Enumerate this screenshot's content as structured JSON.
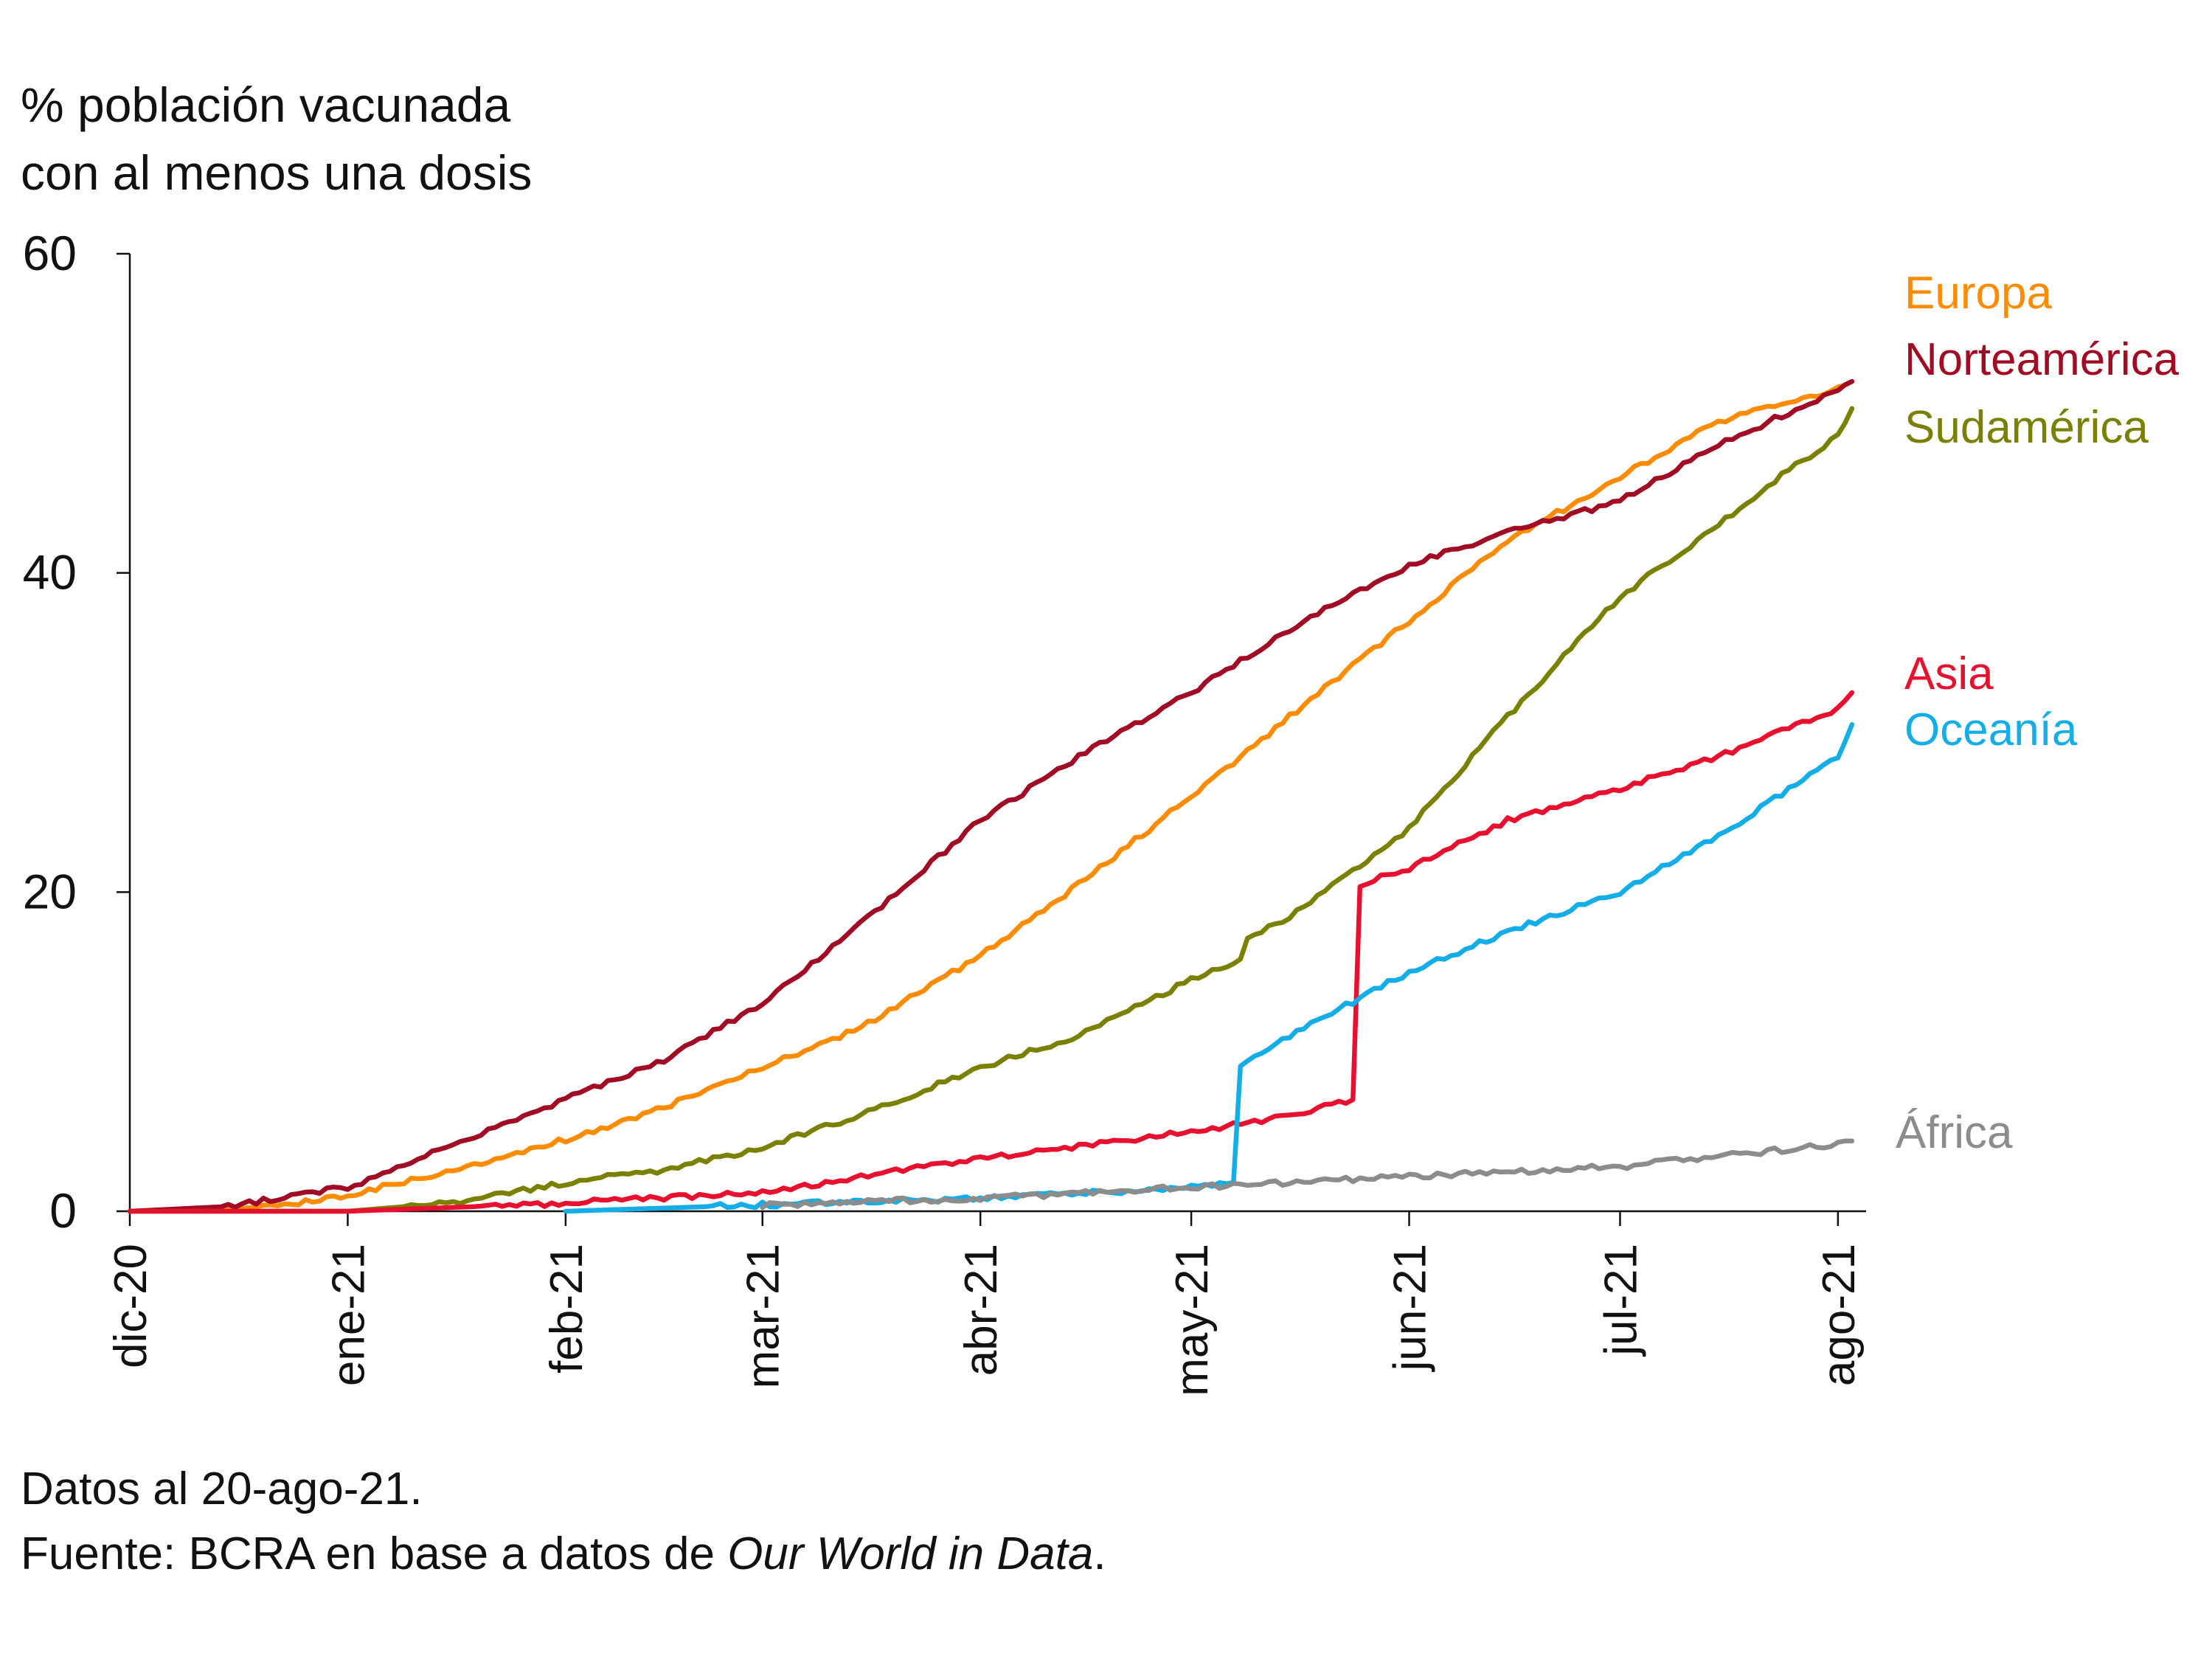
{
  "ylabel_lines": [
    "% población vacunada",
    "con al menos una dosis"
  ],
  "footer": {
    "line1": "Datos al 20-ago-21.",
    "line2_prefix": "Fuente: BCRA en base a datos de ",
    "line2_italic": "Our World in Data",
    "line2_suffix": "."
  },
  "chart_data": {
    "type": "line",
    "title": "",
    "xlabel": "",
    "ylabel": "% población vacunada con al menos una dosis",
    "ylim": [
      0,
      60
    ],
    "yticks": [
      0,
      20,
      40,
      60
    ],
    "xlim": [
      "2020-12-01",
      "2021-08-05"
    ],
    "xticks": [
      {
        "date": "2020-12-01",
        "label": "dic-20"
      },
      {
        "date": "2021-01-01",
        "label": "ene-21"
      },
      {
        "date": "2021-02-01",
        "label": "feb-21"
      },
      {
        "date": "2021-03-01",
        "label": "mar-21"
      },
      {
        "date": "2021-04-01",
        "label": "abr-21"
      },
      {
        "date": "2021-05-01",
        "label": "may-21"
      },
      {
        "date": "2021-06-01",
        "label": "jun-21"
      },
      {
        "date": "2021-07-01",
        "label": "jul-21"
      },
      {
        "date": "2021-08-01",
        "label": "ago-21"
      }
    ],
    "grid": false,
    "legend": "right, inline labels",
    "series": [
      {
        "name": "Europa",
        "color": "#ff8c00",
        "points": [
          [
            "2020-12-01",
            0
          ],
          [
            "2020-12-15",
            0.1
          ],
          [
            "2020-12-25",
            0.5
          ],
          [
            "2021-01-01",
            1
          ],
          [
            "2021-01-15",
            2.5
          ],
          [
            "2021-02-01",
            4.5
          ],
          [
            "2021-02-15",
            6.5
          ],
          [
            "2021-03-01",
            9
          ],
          [
            "2021-03-15",
            11.5
          ],
          [
            "2021-04-01",
            16
          ],
          [
            "2021-04-15",
            20.5
          ],
          [
            "2021-05-01",
            26
          ],
          [
            "2021-05-15",
            31
          ],
          [
            "2021-06-01",
            37
          ],
          [
            "2021-06-15",
            42
          ],
          [
            "2021-07-01",
            46
          ],
          [
            "2021-07-15",
            49.5
          ],
          [
            "2021-08-01",
            51.5
          ],
          [
            "2021-08-03",
            52
          ]
        ]
      },
      {
        "name": "Norteamérica",
        "color": "#a10b24",
        "points": [
          [
            "2020-12-01",
            0
          ],
          [
            "2020-12-15",
            0.3
          ],
          [
            "2021-01-01",
            1.5
          ],
          [
            "2021-01-15",
            4
          ],
          [
            "2021-02-01",
            7
          ],
          [
            "2021-02-15",
            9.5
          ],
          [
            "2021-03-01",
            13
          ],
          [
            "2021-03-15",
            18
          ],
          [
            "2021-04-01",
            24.5
          ],
          [
            "2021-04-15",
            28.5
          ],
          [
            "2021-05-01",
            32.5
          ],
          [
            "2021-05-15",
            36.5
          ],
          [
            "2021-06-01",
            40.5
          ],
          [
            "2021-06-15",
            42.5
          ],
          [
            "2021-07-01",
            44.5
          ],
          [
            "2021-07-15",
            48
          ],
          [
            "2021-08-01",
            51.5
          ],
          [
            "2021-08-03",
            52
          ]
        ]
      },
      {
        "name": "Sudamérica",
        "color": "#7a8000",
        "points": [
          [
            "2020-12-01",
            0
          ],
          [
            "2021-01-01",
            0
          ],
          [
            "2021-01-15",
            0.5
          ],
          [
            "2021-02-01",
            1.8
          ],
          [
            "2021-02-15",
            2.6
          ],
          [
            "2021-03-01",
            4
          ],
          [
            "2021-03-15",
            6
          ],
          [
            "2021-04-01",
            9
          ],
          [
            "2021-04-15",
            11
          ],
          [
            "2021-05-01",
            14.5
          ],
          [
            "2021-05-08",
            15.8
          ],
          [
            "2021-05-09",
            17
          ],
          [
            "2021-05-15",
            18.5
          ],
          [
            "2021-06-01",
            24
          ],
          [
            "2021-06-15",
            31
          ],
          [
            "2021-07-01",
            38.5
          ],
          [
            "2021-07-15",
            43
          ],
          [
            "2021-07-25",
            46.5
          ],
          [
            "2021-08-01",
            48.5
          ],
          [
            "2021-08-03",
            50.3
          ]
        ]
      },
      {
        "name": "Asia",
        "color": "#e8102e",
        "points": [
          [
            "2020-12-01",
            0
          ],
          [
            "2021-01-01",
            0
          ],
          [
            "2021-02-01",
            0.5
          ],
          [
            "2021-03-01",
            1.2
          ],
          [
            "2021-04-01",
            3.3
          ],
          [
            "2021-05-01",
            5
          ],
          [
            "2021-05-15",
            6
          ],
          [
            "2021-05-24",
            7
          ],
          [
            "2021-05-25",
            20.5
          ],
          [
            "2021-06-01",
            21.5
          ],
          [
            "2021-06-15",
            24.5
          ],
          [
            "2021-07-01",
            26.5
          ],
          [
            "2021-07-15",
            28.5
          ],
          [
            "2021-08-01",
            31.5
          ],
          [
            "2021-08-03",
            32.5
          ]
        ]
      },
      {
        "name": "Oceanía",
        "color": "#13aee8",
        "points": [
          [
            "2021-02-01",
            0
          ],
          [
            "2021-03-01",
            0.4
          ],
          [
            "2021-04-01",
            0.8
          ],
          [
            "2021-05-01",
            1.5
          ],
          [
            "2021-05-07",
            1.8
          ],
          [
            "2021-05-08",
            9
          ],
          [
            "2021-05-15",
            11
          ],
          [
            "2021-06-01",
            15
          ],
          [
            "2021-06-15",
            17.5
          ],
          [
            "2021-07-01",
            20
          ],
          [
            "2021-07-15",
            23.5
          ],
          [
            "2021-08-01",
            28.5
          ],
          [
            "2021-08-03",
            30.5
          ]
        ]
      },
      {
        "name": "África",
        "color": "#8c8c8c",
        "points": [
          [
            "2021-03-01",
            0.4
          ],
          [
            "2021-04-01",
            0.8
          ],
          [
            "2021-05-01",
            1.5
          ],
          [
            "2021-06-01",
            2.2
          ],
          [
            "2021-07-01",
            2.8
          ],
          [
            "2021-08-01",
            4.2
          ],
          [
            "2021-08-03",
            4.4
          ]
        ]
      }
    ]
  }
}
